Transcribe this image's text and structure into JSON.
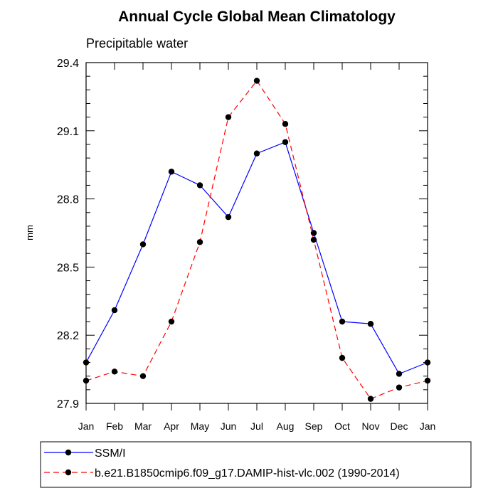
{
  "chart_data": {
    "type": "line",
    "title": "Annual Cycle Global Mean Climatology",
    "subtitle": "Precipitable water",
    "xlabel": "",
    "ylabel": "mm",
    "categories": [
      "Jan",
      "Feb",
      "Mar",
      "Apr",
      "May",
      "Jun",
      "Jul",
      "Aug",
      "Sep",
      "Oct",
      "Nov",
      "Dec",
      "Jan"
    ],
    "ylim": [
      27.9,
      29.4
    ],
    "yticks": [
      "27.9",
      "28.2",
      "28.5",
      "28.8",
      "29.1",
      "29.4"
    ],
    "legend_position": "bottom",
    "series": [
      {
        "name": "SSM/I",
        "color": "#0000ff",
        "dash": "solid",
        "values": [
          28.08,
          28.31,
          28.6,
          28.92,
          28.86,
          28.72,
          29.0,
          29.05,
          28.65,
          28.26,
          28.25,
          28.03,
          28.08
        ]
      },
      {
        "name": "b.e21.B1850cmip6.f09_g17.DAMIP-hist-vlc.002 (1990-2014)",
        "color": "#ff0000",
        "dash": "dashed",
        "values": [
          28.0,
          28.04,
          28.02,
          28.26,
          28.61,
          29.16,
          29.32,
          29.13,
          28.62,
          28.1,
          27.92,
          27.97,
          28.0
        ]
      }
    ]
  }
}
